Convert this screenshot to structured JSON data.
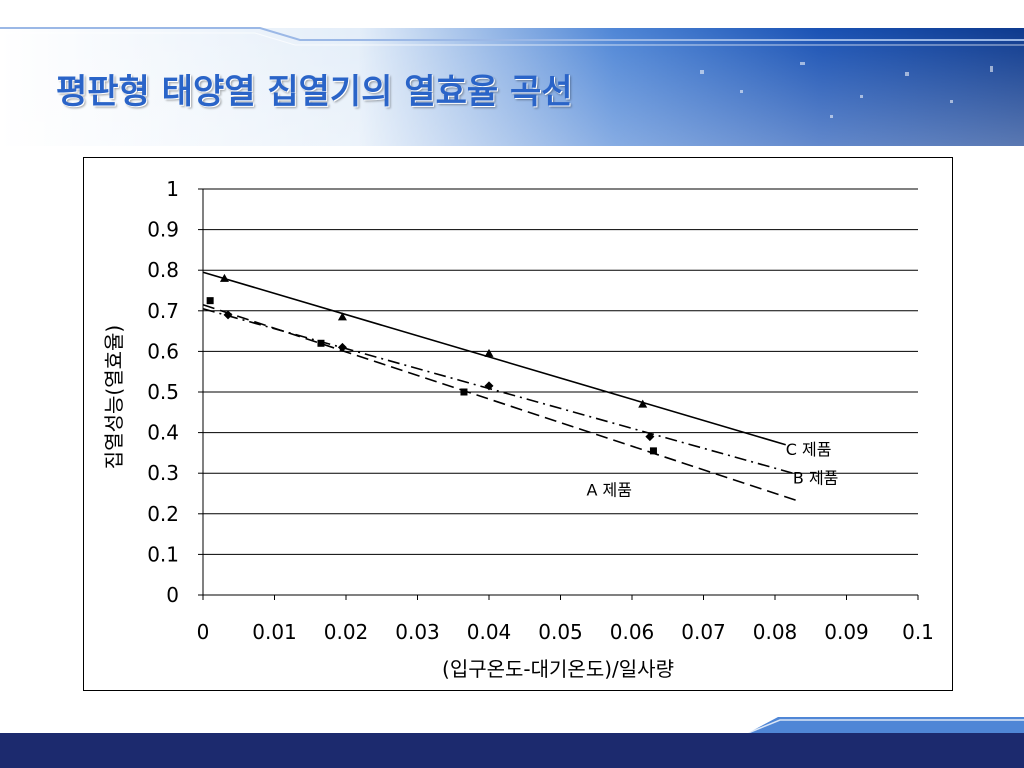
{
  "page": {
    "title": "평판형 태양열 집열기의 열효율 곡선"
  },
  "colors": {
    "title": "#2a64c8",
    "footer": "#1c2a6e",
    "banner_dark": "#0f3a8a",
    "banner_light": "#e9f2fb"
  },
  "chart_data": {
    "type": "scatter",
    "title": "",
    "xlabel": "(입구온도-대기온도)/일사량",
    "ylabel": "집열성능(열효율)",
    "xlim": [
      0,
      0.1
    ],
    "ylim": [
      0,
      1
    ],
    "xticks": [
      "0",
      "0.01",
      "0.02",
      "0.03",
      "0.04",
      "0.05",
      "0.06",
      "0.07",
      "0.08",
      "0.09",
      "0.1"
    ],
    "yticks": [
      "0",
      "0.1",
      "0.2",
      "0.3",
      "0.4",
      "0.5",
      "0.6",
      "0.7",
      "0.8",
      "0.9",
      "1"
    ],
    "grid": "horizontal",
    "series": [
      {
        "name": "A 제품",
        "marker": "square",
        "line_style": "dashed",
        "points": [
          {
            "x": 0.001,
            "y": 0.725
          },
          {
            "x": 0.0165,
            "y": 0.62
          },
          {
            "x": 0.0365,
            "y": 0.5
          },
          {
            "x": 0.063,
            "y": 0.355
          }
        ],
        "fit": {
          "x": [
            0,
            0.0835
          ],
          "y": [
            0.715,
            0.23
          ]
        }
      },
      {
        "name": "B 제품",
        "marker": "diamond",
        "line_style": "dashdot",
        "points": [
          {
            "x": 0.0035,
            "y": 0.69
          },
          {
            "x": 0.0195,
            "y": 0.61
          },
          {
            "x": 0.04,
            "y": 0.515
          },
          {
            "x": 0.0625,
            "y": 0.39
          }
        ],
        "fit": {
          "x": [
            0,
            0.0825
          ],
          "y": [
            0.705,
            0.3
          ]
        }
      },
      {
        "name": "C 제품",
        "marker": "triangle",
        "line_style": "solid",
        "points": [
          {
            "x": 0.003,
            "y": 0.78
          },
          {
            "x": 0.0195,
            "y": 0.685
          },
          {
            "x": 0.04,
            "y": 0.595
          },
          {
            "x": 0.0615,
            "y": 0.47
          }
        ],
        "fit": {
          "x": [
            0,
            0.0815
          ],
          "y": [
            0.795,
            0.37
          ]
        }
      }
    ]
  }
}
